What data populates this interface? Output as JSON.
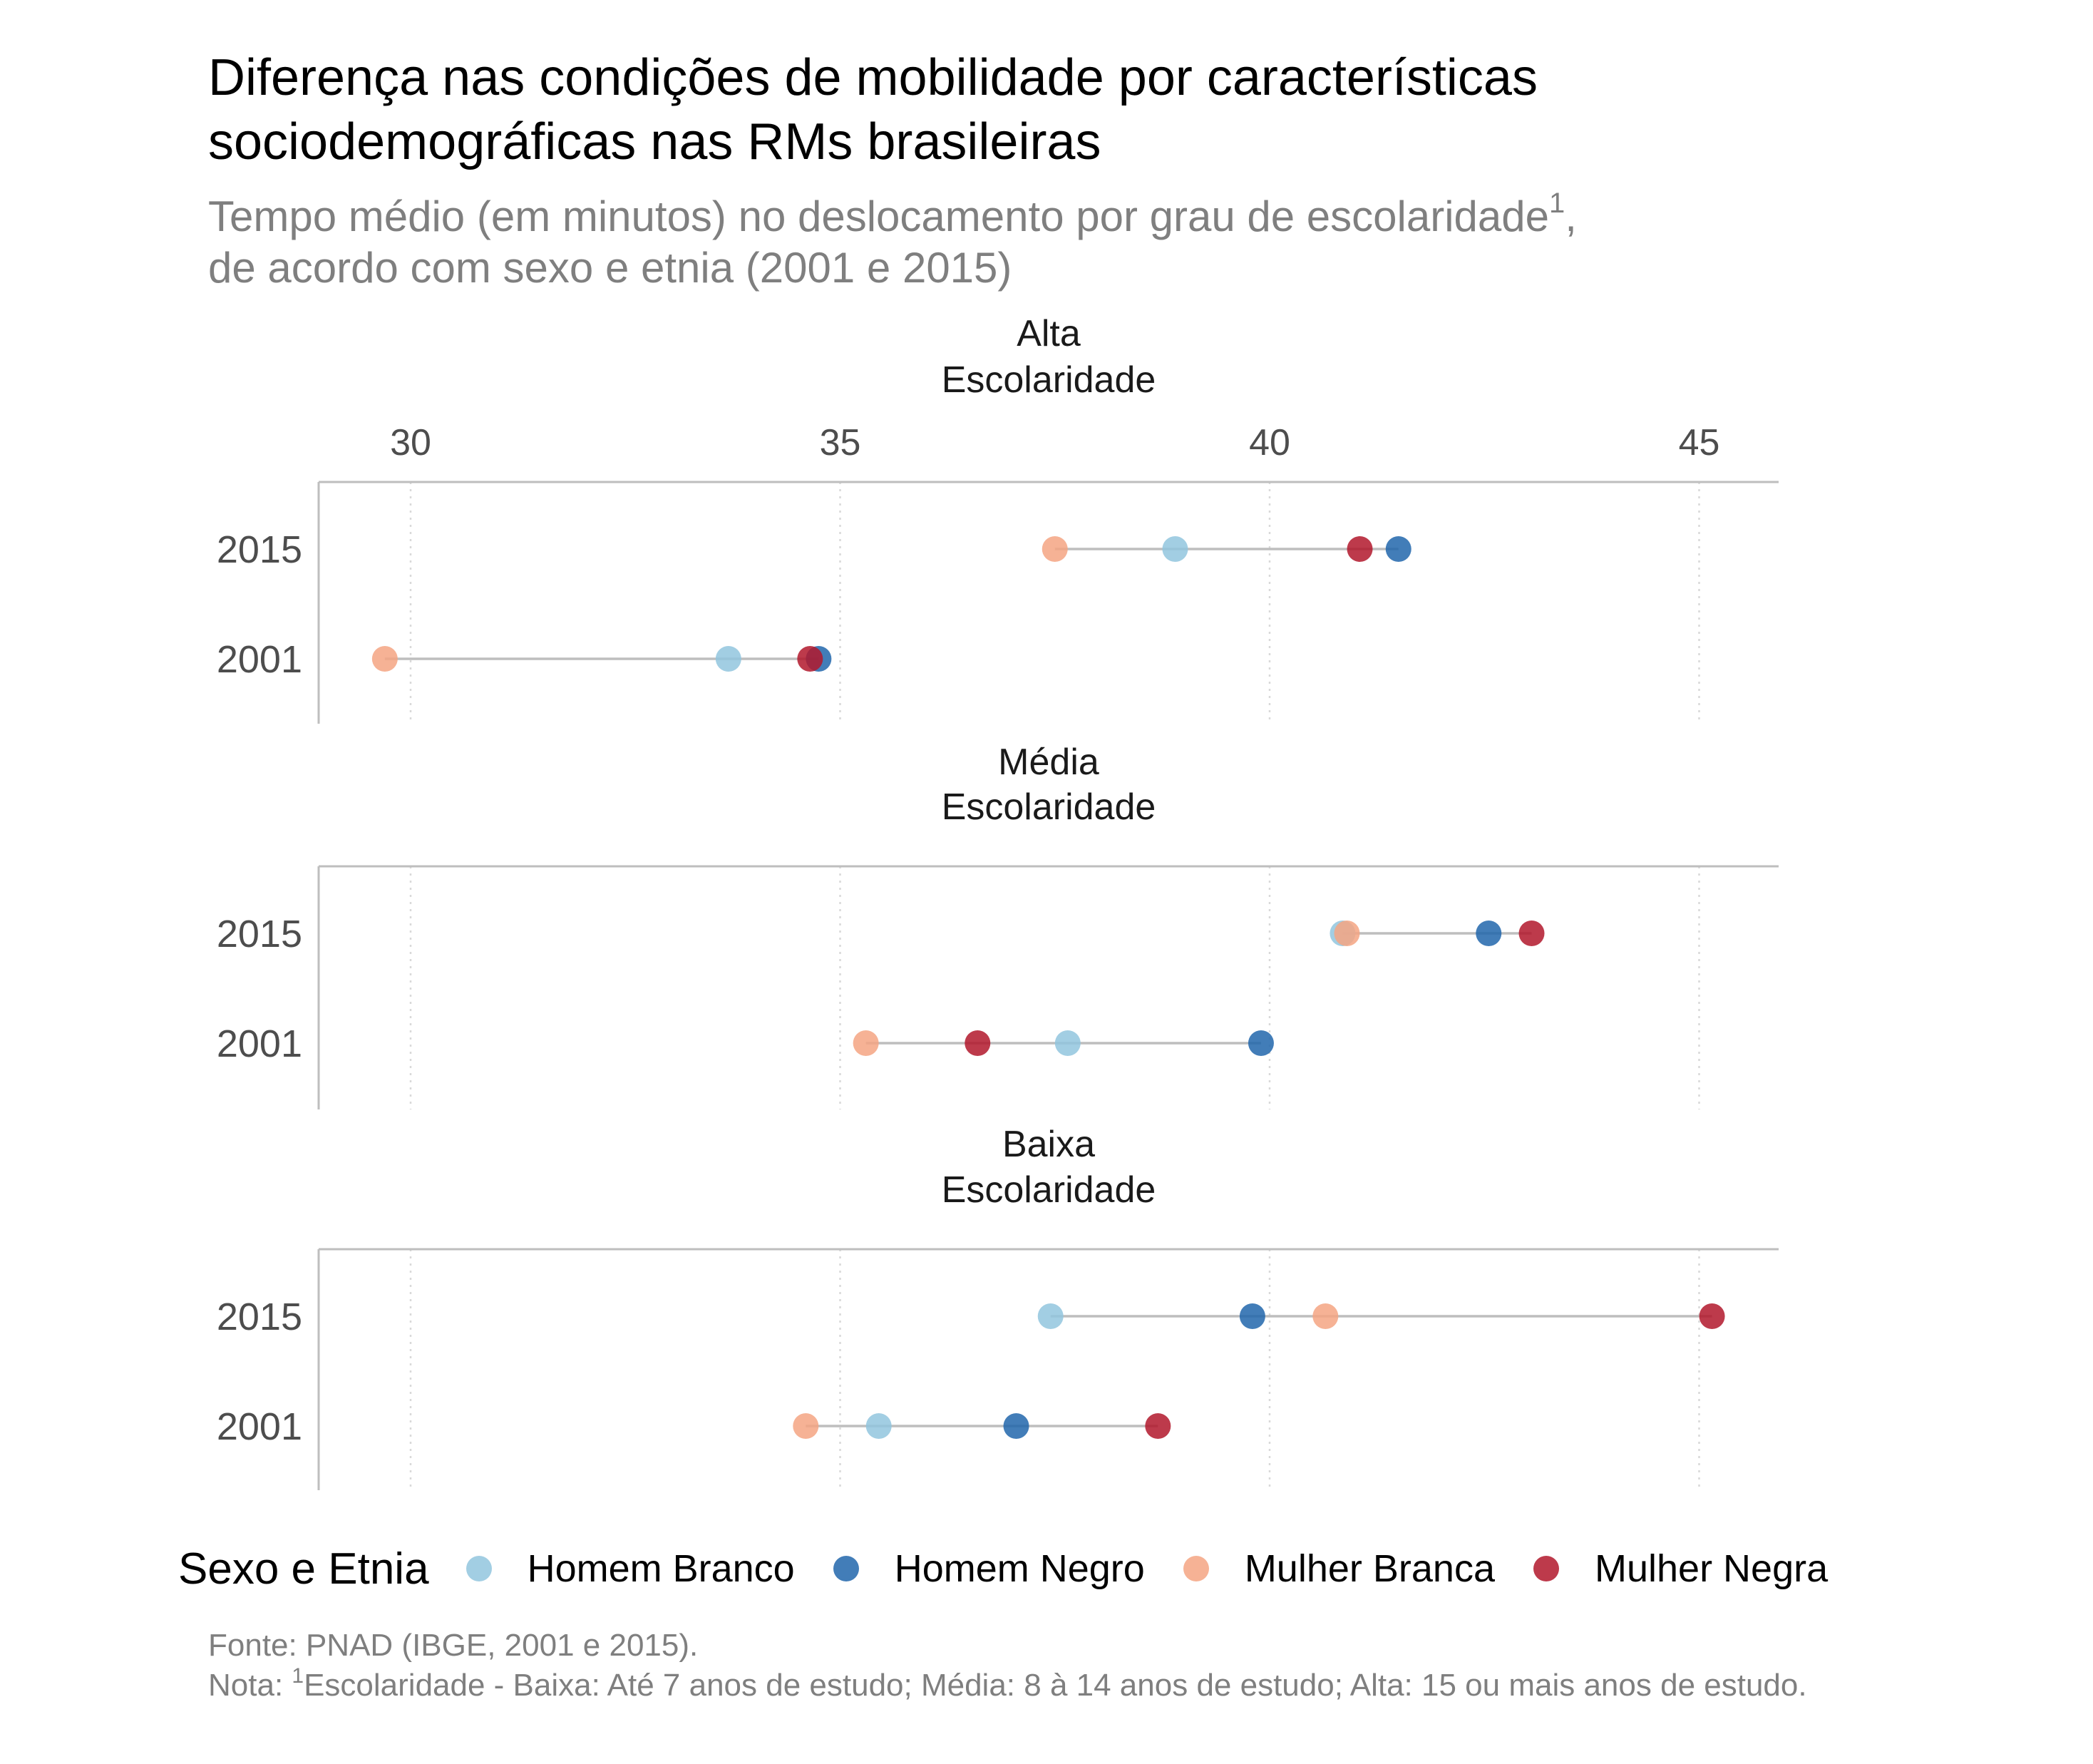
{
  "title": {
    "line1": "Diferença nas condições de mobilidade por características",
    "line2": "sociodemográficas nas RMs brasileiras"
  },
  "subtitle": {
    "line1_text": "Tempo médio (em minutos) no deslocamento por grau de escolaridade",
    "line1_sup": "1",
    "line1_tail": ",",
    "line2": "de acordo com sexo e etnia (2001 e 2015)"
  },
  "legend": {
    "title": "Sexo e Etnia",
    "items": [
      {
        "label": "Homem Branco",
        "color": "#92c5de"
      },
      {
        "label": "Homem Negro",
        "color": "#2166ac"
      },
      {
        "label": "Mulher Branca",
        "color": "#f4a582"
      },
      {
        "label": "Mulher Negra",
        "color": "#b2182b"
      }
    ]
  },
  "caption": {
    "line1": "Fonte: PNAD (IBGE, 2001 e 2015).",
    "line2_prefix": "Nota: ",
    "line2_sup": "1",
    "line2_text": "Escolaridade - Baixa: Até 7 anos de estudo; Média: 8 à 14 anos de estudo; Alta: 15 ou mais anos de estudo."
  },
  "colors": {
    "axis_text": "#4d4d4d",
    "axis_line": "#bebebe",
    "segment": "#bebebe",
    "grid": "#d9d9d9"
  },
  "chart_data": {
    "type": "scatter",
    "subtype": "dumbbell",
    "x_ticks": [
      30,
      35,
      40,
      45
    ],
    "xlim": [
      28.9,
      45.9
    ],
    "grid": "vertical dotted",
    "legend_position": "bottom",
    "series_names": [
      "Homem Branco",
      "Homem Negro",
      "Mulher Branca",
      "Mulher Negra"
    ],
    "facets": [
      {
        "label_line1": "Alta",
        "label_line2": "Escolaridade",
        "rows": [
          {
            "year": "2015",
            "values": {
              "Homem Branco": 38.9,
              "Homem Negro": 41.5,
              "Mulher Branca": 37.5,
              "Mulher Negra": 41.05
            }
          },
          {
            "year": "2001",
            "values": {
              "Homem Branco": 33.7,
              "Homem Negro": 34.75,
              "Mulher Branca": 29.7,
              "Mulher Negra": 34.65
            }
          }
        ]
      },
      {
        "label_line1": "Média",
        "label_line2": "Escolaridade",
        "rows": [
          {
            "year": "2015",
            "values": {
              "Homem Branco": 40.85,
              "Homem Negro": 42.55,
              "Mulher Branca": 40.9,
              "Mulher Negra": 43.05
            }
          },
          {
            "year": "2001",
            "values": {
              "Homem Branco": 37.65,
              "Homem Negro": 39.9,
              "Mulher Branca": 35.3,
              "Mulher Negra": 36.6
            }
          }
        ]
      },
      {
        "label_line1": "Baixa",
        "label_line2": "Escolaridade",
        "rows": [
          {
            "year": "2015",
            "values": {
              "Homem Branco": 37.45,
              "Homem Negro": 39.8,
              "Mulher Branca": 40.65,
              "Mulher Negra": 45.15
            }
          },
          {
            "year": "2001",
            "values": {
              "Homem Branco": 35.45,
              "Homem Negro": 37.05,
              "Mulher Branca": 34.6,
              "Mulher Negra": 38.7
            }
          }
        ]
      }
    ]
  }
}
